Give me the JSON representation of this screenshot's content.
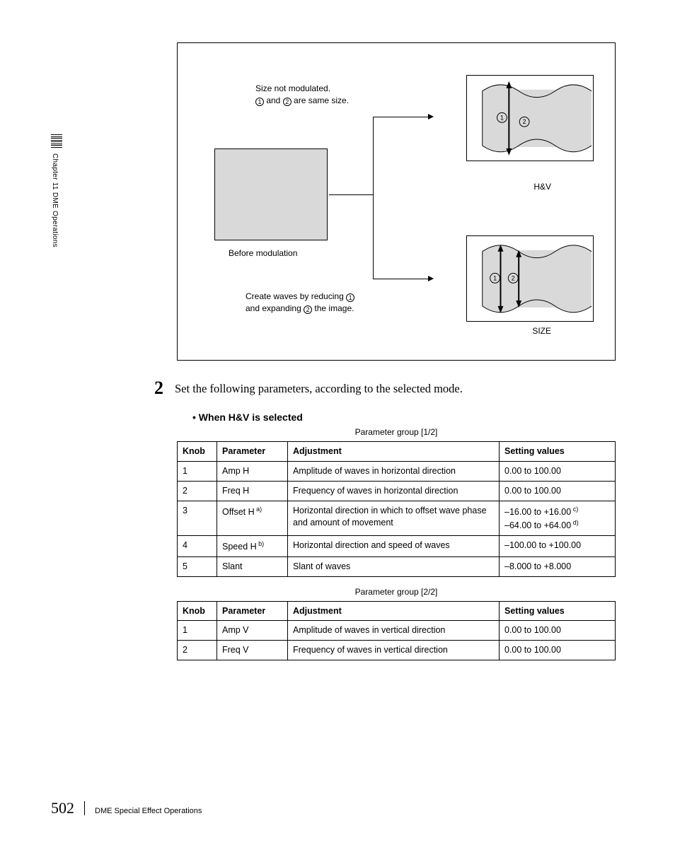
{
  "sidebar": {
    "chapter": "Chapter 11  DME Operations"
  },
  "diagram": {
    "note_top_l1": "Size not modulated.",
    "note_top_l2_a": "1",
    "note_top_l2_mid": " and ",
    "note_top_l2_b": "2",
    "note_top_l2_end": " are same size.",
    "before_label": "Before modulation",
    "note_bot_l1_a": "Create waves by reducing ",
    "note_bot_l1_b": "1",
    "note_bot_l2_a": "and expanding ",
    "note_bot_l2_b": "2",
    "note_bot_l2_end": " the image.",
    "label_hv": "H&V",
    "label_size": "SIZE",
    "marker_1": "1",
    "marker_2": "2"
  },
  "step": {
    "num": "2",
    "text": "Set the following parameters, according to the selected mode."
  },
  "section": {
    "subhead": "When H&V is selected"
  },
  "group1": {
    "title": "Parameter group [1/2]",
    "headers": [
      "Knob",
      "Parameter",
      "Adjustment",
      "Setting values"
    ],
    "rows": [
      {
        "k": "1",
        "p": "Amp H",
        "sup": "",
        "a": "Amplitude of waves in horizontal direction",
        "s": "0.00 to 100.00",
        "s2": "",
        "sup1": "",
        "sup2": ""
      },
      {
        "k": "2",
        "p": "Freq H",
        "sup": "",
        "a": "Frequency of waves in horizontal direction",
        "s": "0.00 to 100.00",
        "s2": "",
        "sup1": "",
        "sup2": ""
      },
      {
        "k": "3",
        "p": "Offset H",
        "sup": "a)",
        "a": "Horizontal direction in which to offset wave phase and amount of movement",
        "s": "–16.00 to +16.00",
        "s2": "–64.00 to +64.00",
        "sup1": "c)",
        "sup2": "d)"
      },
      {
        "k": "4",
        "p": "Speed H",
        "sup": "b)",
        "a": "Horizontal direction and speed of waves",
        "s": "–100.00 to +100.00",
        "s2": "",
        "sup1": "",
        "sup2": ""
      },
      {
        "k": "5",
        "p": "Slant",
        "sup": "",
        "a": "Slant of waves",
        "s": "–8.000 to +8.000",
        "s2": "",
        "sup1": "",
        "sup2": ""
      }
    ]
  },
  "group2": {
    "title": "Parameter group [2/2]",
    "headers": [
      "Knob",
      "Parameter",
      "Adjustment",
      "Setting values"
    ],
    "rows": [
      {
        "k": "1",
        "p": "Amp V",
        "a": "Amplitude of waves in vertical direction",
        "s": "0.00 to 100.00"
      },
      {
        "k": "2",
        "p": "Freq V",
        "a": "Frequency of waves in vertical direction",
        "s": "0.00 to 100.00"
      }
    ]
  },
  "footer": {
    "page": "502",
    "title": "DME Special Effect Operations"
  }
}
